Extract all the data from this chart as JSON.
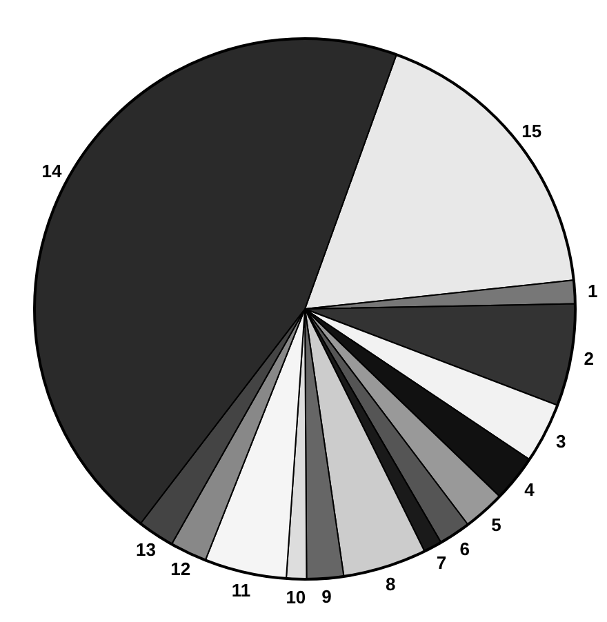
{
  "chart_data": {
    "type": "pie",
    "categories": [
      "15",
      "1",
      "2",
      "3",
      "4",
      "5",
      "6",
      "7",
      "8",
      "9",
      "10",
      "11",
      "12",
      "13",
      "14"
    ],
    "values": [
      17.8,
      1.4,
      6.1,
      3.6,
      2.8,
      2.5,
      1.9,
      1.1,
      5.0,
      2.2,
      1.2,
      4.9,
      2.2,
      2.2,
      45.1
    ],
    "colors": [
      "#e8e8e8",
      "#777777",
      "#333333",
      "#f2f2f2",
      "#111111",
      "#999999",
      "#555555",
      "#1a1a1a",
      "#cccccc",
      "#666666",
      "#dddddd",
      "#f5f5f5",
      "#888888",
      "#444444",
      "#2a2a2a"
    ],
    "legend": false
  }
}
